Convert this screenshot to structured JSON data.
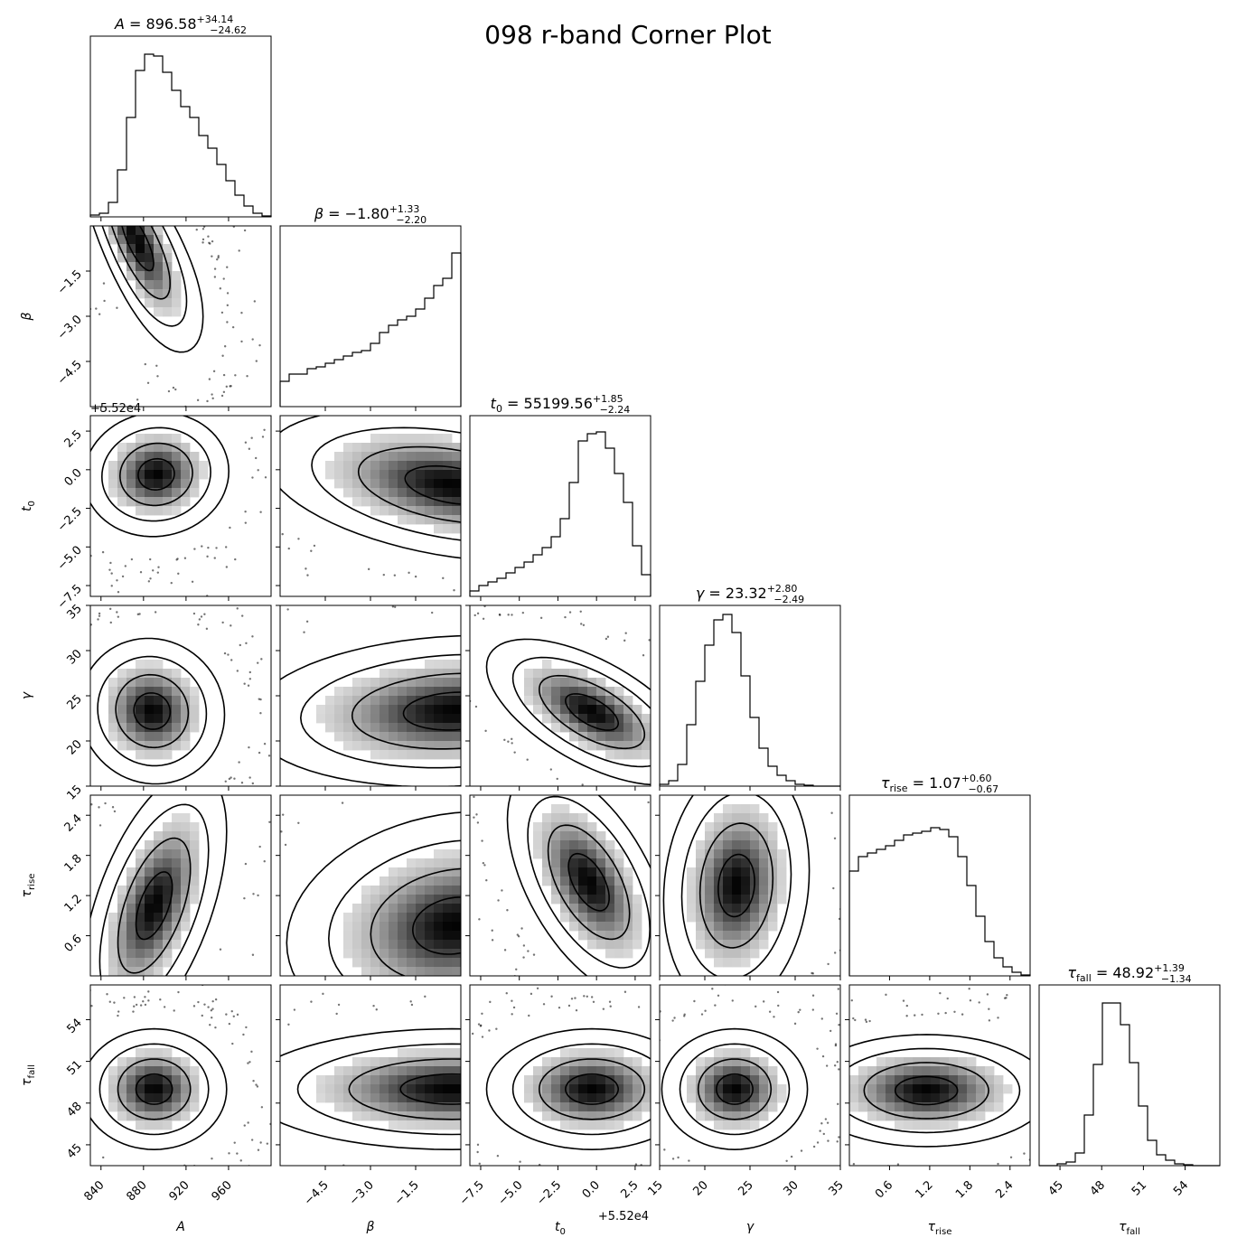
{
  "title": "098 r-band Corner Plot",
  "chart_data": {
    "type": "corner",
    "title": "098 r-band Corner Plot",
    "parameters": [
      {
        "key": "A",
        "label": "A",
        "title": "A = 896.58 +34.14 −24.62",
        "median": 896.58,
        "err_plus": 34.14,
        "err_minus": 24.62,
        "range": [
          830,
          1000
        ],
        "ticks": [
          840,
          880,
          920,
          960
        ],
        "tick_labels": [
          "840",
          "880",
          "920",
          "960"
        ],
        "offset": "",
        "hist": [
          0.01,
          0.02,
          0.08,
          0.26,
          0.55,
          0.81,
          0.9,
          0.89,
          0.8,
          0.7,
          0.61,
          0.55,
          0.45,
          0.38,
          0.29,
          0.2,
          0.12,
          0.06,
          0.02,
          0.005
        ]
      },
      {
        "key": "beta",
        "label": "β",
        "title": "β = −1.80 +1.33 −2.20",
        "median": -1.8,
        "err_plus": 1.33,
        "err_minus": 2.2,
        "range": [
          -6.0,
          0.0
        ],
        "ticks": [
          -4.5,
          -3.0,
          -1.5
        ],
        "tick_labels": [
          "−4.5",
          "−3.0",
          "−1.5"
        ],
        "offset": "",
        "hist": [
          0.14,
          0.18,
          0.18,
          0.21,
          0.22,
          0.24,
          0.26,
          0.28,
          0.3,
          0.31,
          0.35,
          0.41,
          0.45,
          0.48,
          0.5,
          0.54,
          0.6,
          0.67,
          0.71,
          0.85
        ]
      },
      {
        "key": "t0",
        "label": "t0",
        "title": "t0 = 55199.56 +1.85 −2.24",
        "median": 55199.56,
        "err_plus": 1.85,
        "err_minus": 2.24,
        "range": [
          -8.2,
          3.5
        ],
        "ticks": [
          -7.5,
          -5.0,
          -2.5,
          0.0,
          2.5
        ],
        "tick_labels": [
          "−7.5",
          "−5.0",
          "−2.5",
          "0.0",
          "2.5"
        ],
        "offset": "+5.52e4",
        "hist": [
          0.03,
          0.06,
          0.08,
          0.1,
          0.13,
          0.16,
          0.19,
          0.23,
          0.27,
          0.33,
          0.43,
          0.63,
          0.86,
          0.9,
          0.91,
          0.82,
          0.68,
          0.52,
          0.28,
          0.12
        ]
      },
      {
        "key": "gamma",
        "label": "γ",
        "title": "γ = 23.32 +2.80 −2.49",
        "median": 23.32,
        "err_plus": 2.8,
        "err_minus": 2.49,
        "range": [
          15,
          35
        ],
        "ticks": [
          15,
          20,
          25,
          30,
          35
        ],
        "tick_labels": [
          "15",
          "20",
          "25",
          "30",
          "35"
        ],
        "offset": "",
        "hist": [
          0.01,
          0.03,
          0.12,
          0.34,
          0.58,
          0.78,
          0.92,
          0.95,
          0.85,
          0.61,
          0.38,
          0.21,
          0.11,
          0.06,
          0.03,
          0.01,
          0.005,
          0.0,
          0.0,
          0.0
        ]
      },
      {
        "key": "tau_rise",
        "label": "τrise",
        "title": "τrise = 1.07 +0.60 −0.67",
        "median": 1.07,
        "err_plus": 0.6,
        "err_minus": 0.67,
        "range": [
          0.0,
          2.7
        ],
        "ticks": [
          0.6,
          1.2,
          1.8,
          2.4
        ],
        "tick_labels": [
          "0.6",
          "1.2",
          "1.8",
          "2.4"
        ],
        "offset": "",
        "hist": [
          0.58,
          0.66,
          0.68,
          0.7,
          0.72,
          0.75,
          0.78,
          0.79,
          0.8,
          0.82,
          0.81,
          0.77,
          0.66,
          0.5,
          0.33,
          0.19,
          0.1,
          0.05,
          0.02,
          0.005
        ]
      },
      {
        "key": "tau_fall",
        "label": "τfall",
        "title": "τfall = 48.92 +1.39 −1.34",
        "median": 48.92,
        "err_plus": 1.39,
        "err_minus": 1.34,
        "range": [
          43.5,
          56.5
        ],
        "ticks": [
          45,
          48,
          51,
          54
        ],
        "tick_labels": [
          "45",
          "48",
          "51",
          "54"
        ],
        "offset": "",
        "hist": [
          0.0,
          0.0,
          0.01,
          0.02,
          0.07,
          0.28,
          0.56,
          0.9,
          0.9,
          0.78,
          0.57,
          0.33,
          0.14,
          0.06,
          0.03,
          0.01,
          0.005,
          0.0,
          0.0,
          0.0
        ]
      }
    ],
    "pairs": [
      {
        "x": "A",
        "y": "beta",
        "mean": [
          874,
          -0.5
        ],
        "sd": [
          20,
          1.3
        ],
        "rho": -0.78,
        "shape": "curve",
        "bend": -2.2
      },
      {
        "x": "A",
        "y": "t0",
        "mean": [
          892,
          -0.3
        ],
        "sd": [
          22,
          1.3
        ],
        "rho": 0.05,
        "shape": "blob"
      },
      {
        "x": "A",
        "y": "gamma",
        "mean": [
          888,
          23.3
        ],
        "sd": [
          22,
          2.6
        ],
        "rho": -0.05,
        "shape": "blob"
      },
      {
        "x": "A",
        "y": "tau_rise",
        "mean": [
          890,
          1.05
        ],
        "sd": [
          22,
          0.65
        ],
        "rho": 0.55,
        "shape": "blob"
      },
      {
        "x": "A",
        "y": "tau_fall",
        "mean": [
          890,
          49
        ],
        "sd": [
          22,
          1.4
        ],
        "rho": 0.0,
        "shape": "blob"
      },
      {
        "x": "beta",
        "y": "t0",
        "mean": [
          -0.3,
          -1.0
        ],
        "sd": [
          2.0,
          1.6
        ],
        "rho": -0.35,
        "shape": "edge"
      },
      {
        "x": "beta",
        "y": "gamma",
        "mean": [
          -0.2,
          23.3
        ],
        "sd": [
          2.2,
          2.7
        ],
        "rho": 0.12,
        "shape": "edge"
      },
      {
        "x": "beta",
        "y": "tau_rise",
        "mean": [
          -0.2,
          0.75
        ],
        "sd": [
          1.8,
          0.55
        ],
        "rho": 0.15,
        "shape": "edge"
      },
      {
        "x": "beta",
        "y": "tau_fall",
        "mean": [
          -0.3,
          49
        ],
        "sd": [
          2.2,
          1.4
        ],
        "rho": 0.0,
        "shape": "edge"
      },
      {
        "x": "t0",
        "y": "gamma",
        "mean": [
          -0.3,
          23.2
        ],
        "sd": [
          2.2,
          2.6
        ],
        "rho": -0.62,
        "shape": "blob"
      },
      {
        "x": "t0",
        "y": "tau_rise",
        "mean": [
          -0.5,
          1.4
        ],
        "sd": [
          1.7,
          0.55
        ],
        "rho": -0.55,
        "shape": "blob"
      },
      {
        "x": "t0",
        "y": "tau_fall",
        "mean": [
          -0.3,
          49
        ],
        "sd": [
          2.2,
          1.4
        ],
        "rho": 0.0,
        "shape": "blob"
      },
      {
        "x": "gamma",
        "y": "tau_rise",
        "mean": [
          23.5,
          1.35
        ],
        "sd": [
          2.6,
          0.6
        ],
        "rho": 0.12,
        "shape": "blob"
      },
      {
        "x": "gamma",
        "y": "tau_fall",
        "mean": [
          23.3,
          49
        ],
        "sd": [
          2.6,
          1.4
        ],
        "rho": 0.0,
        "shape": "blob"
      },
      {
        "x": "tau_rise",
        "y": "tau_fall",
        "mean": [
          1.15,
          48.9
        ],
        "sd": [
          0.6,
          1.3
        ],
        "rho": 0.0,
        "shape": "blob"
      }
    ],
    "contour_levels_sigma": [
      0.5,
      1.0,
      1.5,
      2.0
    ],
    "grid": false,
    "legend": "none"
  }
}
